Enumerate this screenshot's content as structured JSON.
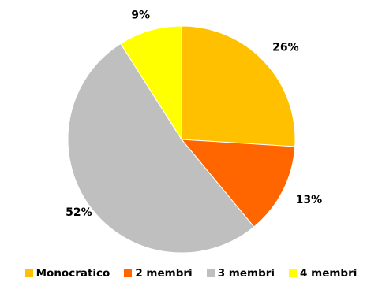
{
  "chart_data": {
    "type": "pie",
    "categories": [
      "Monocratico",
      "2 membri",
      "3 membri",
      "4 membri"
    ],
    "values": [
      26,
      13,
      52,
      9
    ],
    "value_labels": [
      "26%",
      "13%",
      "52%",
      "9%"
    ],
    "colors": [
      "#FFC000",
      "#FF6600",
      "#BFBFBF",
      "#FFFF00"
    ],
    "start_angle_deg": 0,
    "direction": "clockwise",
    "legend_position": "bottom",
    "title": ""
  }
}
